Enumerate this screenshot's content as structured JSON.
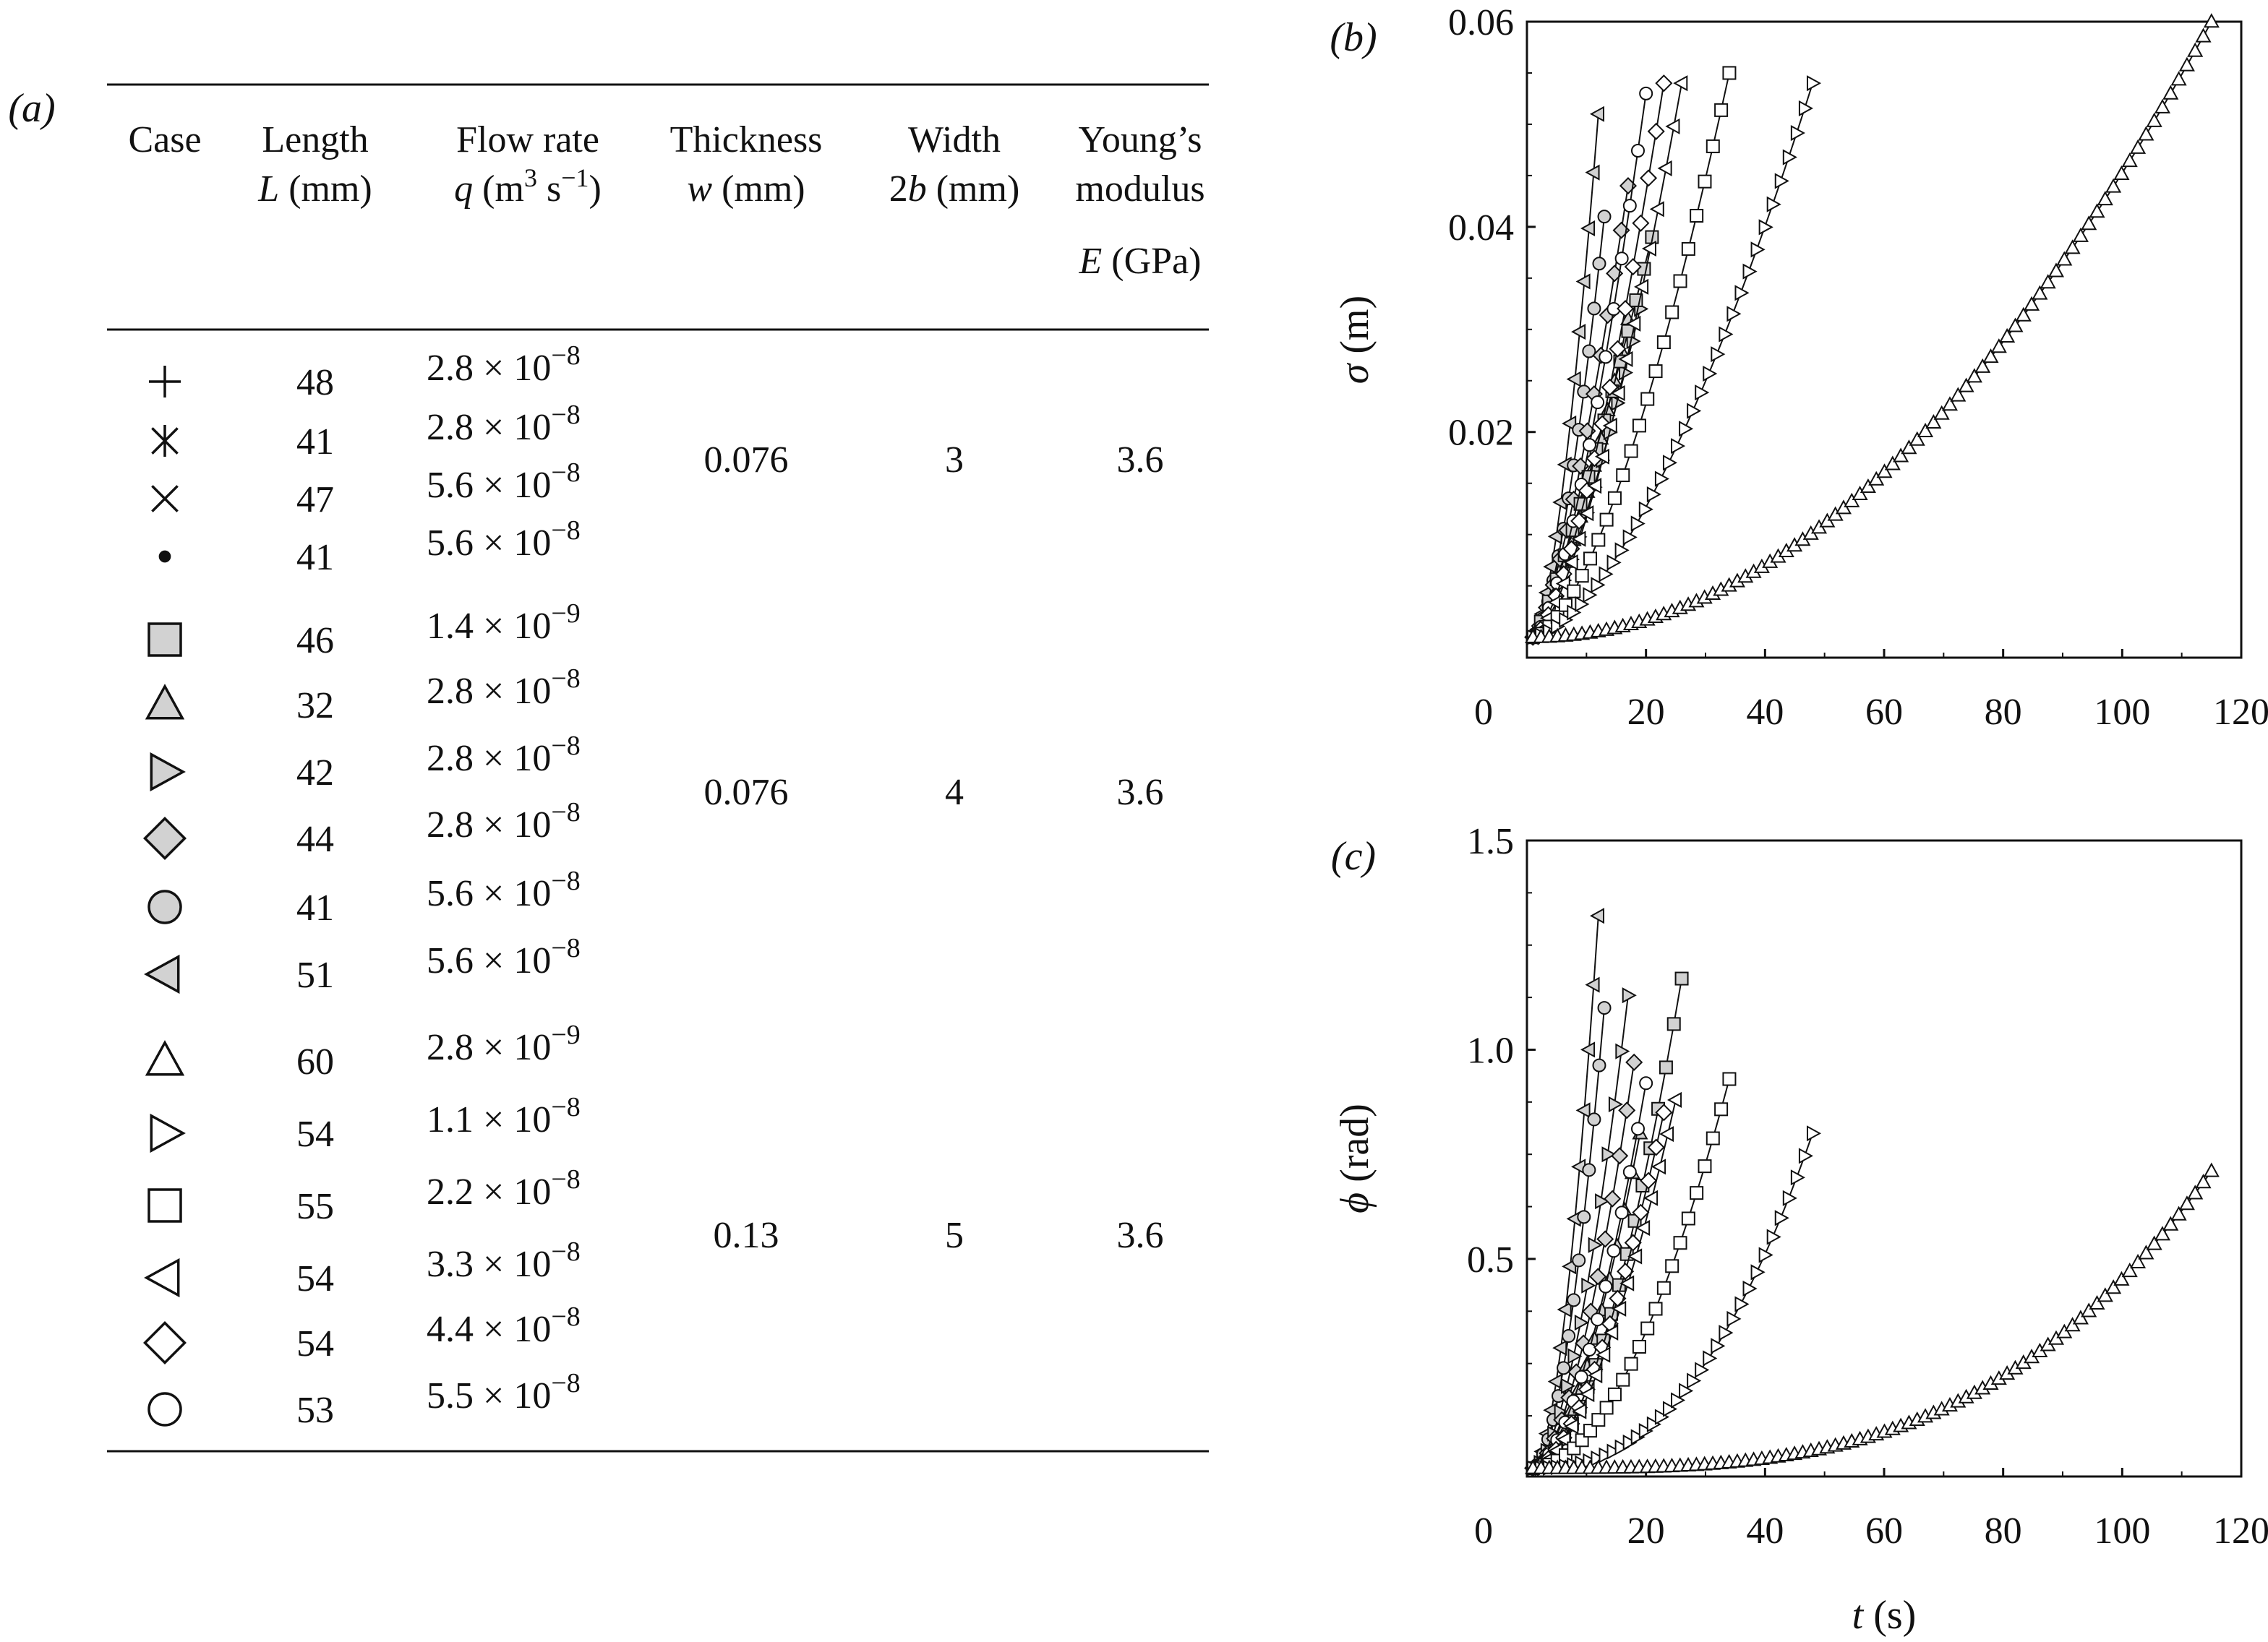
{
  "panel_a": {
    "label": "(a)",
    "headers": {
      "case": "Case",
      "length": [
        "Length",
        "L (mm)"
      ],
      "flow": [
        "Flow rate",
        "q (m3 s−1)"
      ],
      "thickness": [
        "Thickness",
        "w (mm)"
      ],
      "width": [
        "Width",
        "2b (mm)"
      ],
      "young": [
        "Young’s",
        "modulus",
        "E (GPa)"
      ]
    },
    "groups": [
      {
        "thickness": "0.076",
        "width": "3",
        "young": "3.6",
        "rows": [
          {
            "marker": "plus",
            "length": "48",
            "flow_mant": "2.8",
            "flow_exp": "−8"
          },
          {
            "marker": "asterisk",
            "length": "41",
            "flow_mant": "2.8",
            "flow_exp": "−8"
          },
          {
            "marker": "cross",
            "length": "47",
            "flow_mant": "5.6",
            "flow_exp": "−8"
          },
          {
            "marker": "dot",
            "length": "41",
            "flow_mant": "5.6",
            "flow_exp": "−8"
          }
        ]
      },
      {
        "thickness": "0.076",
        "width": "4",
        "young": "3.6",
        "rows": [
          {
            "marker": "square-filled",
            "length": "46",
            "flow_mant": "1.4",
            "flow_exp": "−9"
          },
          {
            "marker": "triangle-up-filled",
            "length": "32",
            "flow_mant": "2.8",
            "flow_exp": "−8"
          },
          {
            "marker": "triangle-right-filled",
            "length": "42",
            "flow_mant": "2.8",
            "flow_exp": "−8"
          },
          {
            "marker": "diamond-filled",
            "length": "44",
            "flow_mant": "2.8",
            "flow_exp": "−8"
          },
          {
            "marker": "circle-filled",
            "length": "41",
            "flow_mant": "5.6",
            "flow_exp": "−8"
          },
          {
            "marker": "triangle-left-filled",
            "length": "51",
            "flow_mant": "5.6",
            "flow_exp": "−8"
          }
        ]
      },
      {
        "thickness": "0.13",
        "width": "5",
        "young": "3.6",
        "rows": [
          {
            "marker": "triangle-up",
            "length": "60",
            "flow_mant": "2.8",
            "flow_exp": "−9"
          },
          {
            "marker": "triangle-right",
            "length": "54",
            "flow_mant": "1.1",
            "flow_exp": "−8"
          },
          {
            "marker": "square",
            "length": "55",
            "flow_mant": "2.2",
            "flow_exp": "−8"
          },
          {
            "marker": "triangle-left",
            "length": "54",
            "flow_mant": "3.3",
            "flow_exp": "−8"
          },
          {
            "marker": "diamond",
            "length": "54",
            "flow_mant": "4.4",
            "flow_exp": "−8"
          },
          {
            "marker": "circle",
            "length": "53",
            "flow_mant": "5.5",
            "flow_exp": "−8"
          }
        ]
      }
    ]
  },
  "chart_data": [
    {
      "id": "b",
      "panel_label": "(b)",
      "type": "scatter",
      "ylabel": "σ (m)",
      "xlabel": "",
      "xlim": [
        0,
        120
      ],
      "ylim": [
        -0.002,
        0.06
      ],
      "xticks": [
        0,
        20,
        40,
        60,
        80,
        100,
        120
      ],
      "yticks": [
        0.02,
        0.04,
        0.06
      ],
      "ytick_labels": [
        "0.02",
        "0.04",
        "0.06"
      ],
      "series": [
        {
          "name": "triangle-left-filled",
          "marker": "triangle-left-filled",
          "t_end": 12,
          "y_end": 0.051,
          "shape": 1.6
        },
        {
          "name": "circle-filled",
          "marker": "circle-filled",
          "t_end": 13,
          "y_end": 0.041,
          "shape": 1.6
        },
        {
          "name": "diamond-filled",
          "marker": "diamond-filled",
          "t_end": 17,
          "y_end": 0.044,
          "shape": 1.4
        },
        {
          "name": "triangle-up-filled",
          "marker": "triangle-up-filled",
          "t_end": 17,
          "y_end": 0.031,
          "shape": 1.4
        },
        {
          "name": "triangle-right-filled",
          "marker": "triangle-right-filled",
          "t_end": 19,
          "y_end": 0.032,
          "shape": 1.4
        },
        {
          "name": "square-filled",
          "marker": "square-filled",
          "t_end": 21,
          "y_end": 0.039,
          "shape": 1.2
        },
        {
          "name": "circle",
          "marker": "circle",
          "t_end": 20,
          "y_end": 0.053,
          "shape": 1.5
        },
        {
          "name": "diamond",
          "marker": "diamond",
          "t_end": 23,
          "y_end": 0.054,
          "shape": 1.5
        },
        {
          "name": "triangle-left",
          "marker": "triangle-left",
          "t_end": 26,
          "y_end": 0.054,
          "shape": 1.5
        },
        {
          "name": "square",
          "marker": "square",
          "t_end": 34,
          "y_end": 0.055,
          "shape": 1.6
        },
        {
          "name": "triangle-right",
          "marker": "triangle-right",
          "t_end": 48,
          "y_end": 0.054,
          "shape": 1.6
        },
        {
          "name": "triangle-up",
          "marker": "triangle-up",
          "t_end": 115,
          "y_end": 0.06,
          "shape": 2.0
        }
      ]
    },
    {
      "id": "c",
      "panel_label": "(c)",
      "type": "scatter",
      "ylabel": "ϕ (rad)",
      "xlabel": "t (s)",
      "xlim": [
        0,
        120
      ],
      "ylim": [
        -0.02,
        1.5
      ],
      "xticks": [
        0,
        20,
        40,
        60,
        80,
        100,
        120
      ],
      "yticks": [
        0.5,
        1.0,
        1.5
      ],
      "ytick_labels": [
        "0.5",
        "1.0",
        "1.5"
      ],
      "series": [
        {
          "name": "triangle-left-filled",
          "marker": "triangle-left-filled",
          "t_end": 12,
          "y_end": 1.32,
          "shape": 1.8
        },
        {
          "name": "circle-filled",
          "marker": "circle-filled",
          "t_end": 13,
          "y_end": 1.1,
          "shape": 1.8
        },
        {
          "name": "triangle-right-filled",
          "marker": "triangle-right-filled",
          "t_end": 17,
          "y_end": 1.13,
          "shape": 1.7
        },
        {
          "name": "diamond-filled",
          "marker": "diamond-filled",
          "t_end": 18,
          "y_end": 0.97,
          "shape": 1.7
        },
        {
          "name": "triangle-up-filled",
          "marker": "triangle-up-filled",
          "t_end": 19,
          "y_end": 0.8,
          "shape": 1.7
        },
        {
          "name": "square-filled",
          "marker": "square-filled",
          "t_end": 26,
          "y_end": 1.17,
          "shape": 1.8
        },
        {
          "name": "circle",
          "marker": "circle",
          "t_end": 20,
          "y_end": 0.92,
          "shape": 1.7
        },
        {
          "name": "diamond",
          "marker": "diamond",
          "t_end": 23,
          "y_end": 0.85,
          "shape": 1.7
        },
        {
          "name": "triangle-left",
          "marker": "triangle-left",
          "t_end": 25,
          "y_end": 0.88,
          "shape": 1.7
        },
        {
          "name": "square",
          "marker": "square",
          "t_end": 34,
          "y_end": 0.93,
          "shape": 1.9
        },
        {
          "name": "triangle-right",
          "marker": "triangle-right",
          "t_end": 48,
          "y_end": 0.8,
          "shape": 2.4
        },
        {
          "name": "triangle-up",
          "marker": "triangle-up",
          "t_end": 115,
          "y_end": 0.71,
          "shape": 3.2
        }
      ]
    }
  ]
}
